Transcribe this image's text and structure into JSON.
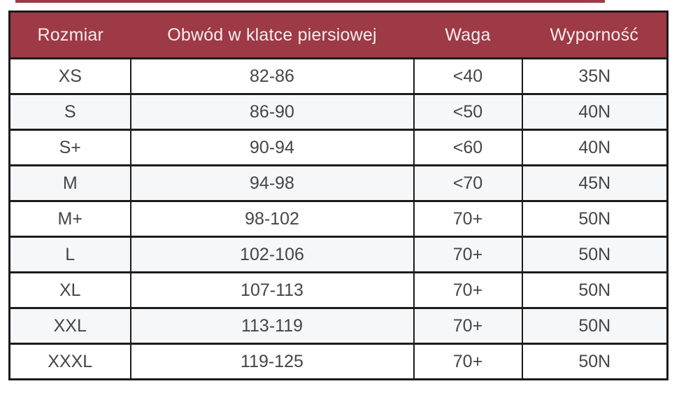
{
  "style": {
    "header_bg": "#9d3a46",
    "header_text_color": "#f6edee",
    "border_color": "#1b1b1b",
    "stripe_color": "#f5f7f8",
    "body_text_color": "#454545",
    "top_strip_color": "#9d3a46"
  },
  "chart_data": {
    "type": "table",
    "title": "",
    "columns": [
      "Rozmiar",
      "Obwód w klatce piersiowej",
      "Waga",
      "Wyporność"
    ],
    "rows": [
      [
        "XS",
        "82-86",
        "<40",
        "35N"
      ],
      [
        "S",
        "86-90",
        "<50",
        "40N"
      ],
      [
        "S+",
        "90-94",
        "<60",
        "40N"
      ],
      [
        "M",
        "94-98",
        "<70",
        "45N"
      ],
      [
        "M+",
        "98-102",
        "70+",
        "50N"
      ],
      [
        "L",
        "102-106",
        "70+",
        "50N"
      ],
      [
        "XL",
        "107-113",
        "70+",
        "50N"
      ],
      [
        "XXL",
        "113-119",
        "70+",
        "50N"
      ],
      [
        "XXXL",
        "119-125",
        "70+",
        "50N"
      ]
    ]
  }
}
